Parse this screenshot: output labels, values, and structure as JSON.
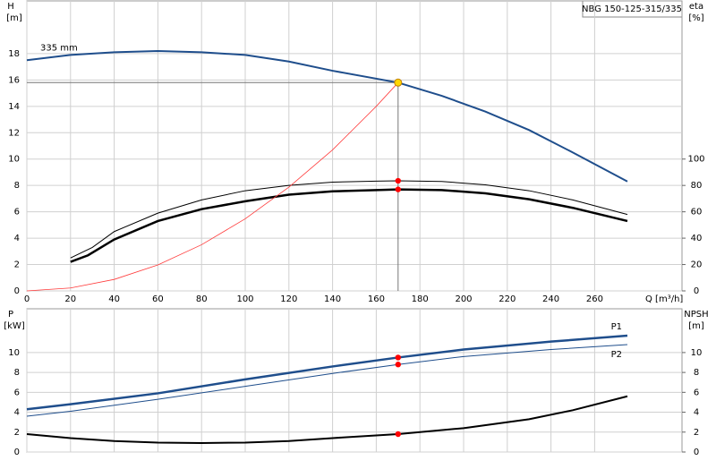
{
  "title_box": "NBG 150-125-315/335",
  "chart_data": [
    {
      "type": "line",
      "ylabel": "H",
      "yunit": "[m]",
      "y2label": "eta",
      "y2unit": "[%]",
      "xlabel": "Q [m³/h]",
      "xlim": [
        0,
        300
      ],
      "xticks": [
        0,
        20,
        40,
        60,
        80,
        100,
        120,
        140,
        160,
        180,
        200,
        220,
        240,
        260
      ],
      "ylim": [
        0,
        22
      ],
      "yticks": [
        0,
        2,
        4,
        6,
        8,
        10,
        12,
        14,
        16,
        18
      ],
      "y2lim": [
        0,
        220
      ],
      "y2ticks": [
        0,
        20,
        40,
        60,
        80,
        100
      ],
      "grid": true,
      "series": [
        {
          "name": "335 mm",
          "color": "#1f4e8c",
          "line_width": 2,
          "x": [
            0,
            20,
            40,
            60,
            80,
            100,
            120,
            140,
            170,
            190,
            210,
            230,
            250,
            275
          ],
          "values": [
            17.5,
            17.9,
            18.1,
            18.2,
            18.1,
            17.9,
            17.4,
            16.7,
            15.8,
            14.8,
            13.6,
            12.2,
            10.5,
            8.3
          ]
        },
        {
          "color": "#000000",
          "line_width": 1,
          "axis": "y2",
          "x": [
            20,
            30,
            40,
            60,
            80,
            100,
            120,
            140,
            160,
            170,
            190,
            210,
            230,
            250,
            275
          ],
          "values": [
            25,
            33,
            45,
            59,
            69,
            76,
            80,
            82.5,
            83.3,
            83.5,
            83,
            80.5,
            76,
            69,
            58
          ]
        },
        {
          "color": "#000000",
          "line_width": 2.5,
          "axis": "y2",
          "x": [
            20,
            28,
            40,
            60,
            80,
            100,
            120,
            140,
            160,
            170,
            190,
            210,
            230,
            250,
            275
          ],
          "values": [
            22,
            27,
            39,
            53,
            62,
            68,
            73,
            75.5,
            76.5,
            77,
            76.5,
            74,
            69.5,
            63,
            53
          ]
        },
        {
          "color": "#ff3b3b",
          "line_width": 0.8,
          "x": [
            0,
            20,
            40,
            60,
            80,
            100,
            120,
            140,
            160,
            170
          ],
          "values": [
            0,
            0.22,
            0.87,
            1.97,
            3.5,
            5.47,
            7.87,
            10.7,
            14.0,
            15.8
          ]
        }
      ],
      "points": [
        {
          "x": 170,
          "y": 15.8,
          "color": "#ffd700",
          "crosshair": true
        },
        {
          "x": 170,
          "y": 83.5,
          "axis": "y2",
          "color": "#ff0000"
        },
        {
          "x": 170,
          "y": 77,
          "axis": "y2",
          "color": "#ff0000"
        }
      ]
    },
    {
      "type": "line",
      "ylabel": "P",
      "yunit": "[kW]",
      "y2label": "NPSH",
      "y2unit": "[m]",
      "xlim": [
        0,
        300
      ],
      "xticks": [
        0,
        20,
        40,
        60,
        80,
        100,
        120,
        140,
        160,
        180,
        200,
        220,
        240,
        260
      ],
      "ylim": [
        0,
        14.4
      ],
      "yticks": [
        0,
        2,
        4,
        6,
        8,
        10
      ],
      "y2lim": [
        0,
        14.4
      ],
      "y2ticks": [
        0,
        2,
        4,
        6,
        8,
        10
      ],
      "grid": true,
      "series": [
        {
          "name": "P1",
          "color": "#1f4e8c",
          "line_width": 2.5,
          "x": [
            0,
            20,
            60,
            100,
            140,
            170,
            200,
            240,
            275
          ],
          "values": [
            4.3,
            4.8,
            5.9,
            7.3,
            8.6,
            9.5,
            10.3,
            11.1,
            11.7
          ]
        },
        {
          "name": "P2",
          "color": "#1f4e8c",
          "line_width": 1,
          "x": [
            0,
            20,
            60,
            100,
            140,
            170,
            200,
            240,
            275
          ],
          "values": [
            3.6,
            4.1,
            5.3,
            6.6,
            7.9,
            8.8,
            9.6,
            10.3,
            10.8
          ]
        },
        {
          "color": "#000000",
          "line_width": 2,
          "axis": "y2",
          "x": [
            0,
            20,
            40,
            60,
            80,
            100,
            120,
            140,
            170,
            200,
            230,
            250,
            275
          ],
          "values": [
            1.8,
            1.4,
            1.1,
            0.95,
            0.9,
            0.95,
            1.1,
            1.4,
            1.8,
            2.4,
            3.3,
            4.2,
            5.6
          ]
        }
      ],
      "points": [
        {
          "x": 170,
          "y": 9.5,
          "color": "#ff0000"
        },
        {
          "x": 170,
          "y": 8.8,
          "color": "#ff0000"
        },
        {
          "x": 170,
          "y": 1.8,
          "axis": "y2",
          "color": "#ff0000"
        }
      ]
    }
  ]
}
